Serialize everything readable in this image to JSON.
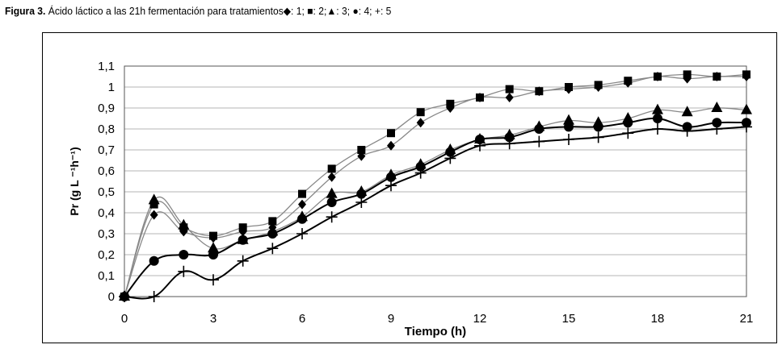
{
  "caption": {
    "label": "Figura 3.",
    "text": "Ácido láctico a las 21h fermentación para tratamientos",
    "legend_text": "◆: 1; ■: 2;▲: 3; ●: 4; +: 5"
  },
  "chart_data": {
    "type": "line",
    "xlabel": "Tiempo (h)",
    "ylabel": "Pr (g L ⁻¹h⁻¹)",
    "xlim": [
      0,
      21
    ],
    "ylim": [
      0,
      1.1
    ],
    "x_ticks": [
      "0",
      "3",
      "6",
      "9",
      "12",
      "15",
      "18",
      "21"
    ],
    "y_ticks": [
      "0",
      "0,1",
      "0,2",
      "0,3",
      "0,4",
      "0,5",
      "0,6",
      "0,7",
      "0,8",
      "0,9",
      "1",
      "1,1"
    ],
    "grid": "horizontal",
    "x": [
      0,
      1,
      2,
      3,
      4,
      5,
      6,
      7,
      8,
      9,
      10,
      11,
      12,
      13,
      14,
      15,
      16,
      17,
      18,
      19,
      20,
      21
    ],
    "series": [
      {
        "marker": "diamond",
        "color": "#888888",
        "markerColor": "#000000",
        "values": [
          0,
          0.39,
          0.31,
          0.28,
          0.31,
          0.33,
          0.44,
          0.57,
          0.67,
          0.72,
          0.83,
          0.9,
          0.95,
          0.95,
          0.98,
          0.99,
          1.0,
          1.02,
          1.05,
          1.04,
          1.05,
          1.05
        ]
      },
      {
        "marker": "square",
        "color": "#888888",
        "markerColor": "#000000",
        "values": [
          0,
          0.44,
          0.33,
          0.29,
          0.33,
          0.36,
          0.49,
          0.61,
          0.7,
          0.78,
          0.88,
          0.92,
          0.95,
          0.99,
          0.98,
          1.0,
          1.01,
          1.03,
          1.05,
          1.06,
          1.05,
          1.06
        ]
      },
      {
        "marker": "triangle",
        "color": "#888888",
        "markerColor": "#000000",
        "values": [
          0,
          0.46,
          0.34,
          0.23,
          0.27,
          0.31,
          0.38,
          0.49,
          0.5,
          0.58,
          0.63,
          0.7,
          0.75,
          0.77,
          0.81,
          0.84,
          0.83,
          0.85,
          0.89,
          0.88,
          0.9,
          0.89
        ]
      },
      {
        "marker": "circle",
        "color": "#000000",
        "markerColor": "#000000",
        "values": [
          0,
          0.17,
          0.2,
          0.2,
          0.27,
          0.3,
          0.37,
          0.45,
          0.49,
          0.57,
          0.62,
          0.69,
          0.75,
          0.76,
          0.8,
          0.81,
          0.81,
          0.83,
          0.85,
          0.81,
          0.83,
          0.83
        ]
      },
      {
        "marker": "plus",
        "color": "#000000",
        "markerColor": "#000000",
        "values": [
          0,
          0,
          0.12,
          0.08,
          0.17,
          0.23,
          0.3,
          0.38,
          0.45,
          0.53,
          0.59,
          0.66,
          0.72,
          0.73,
          0.74,
          0.75,
          0.76,
          0.78,
          0.8,
          0.79,
          0.8,
          0.81
        ]
      }
    ]
  }
}
